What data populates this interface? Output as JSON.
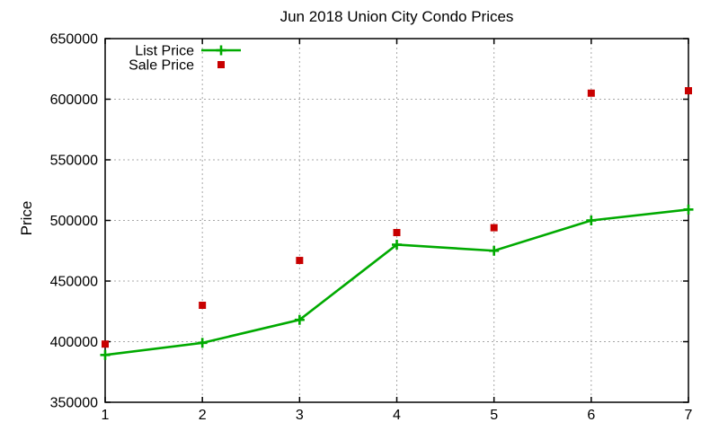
{
  "chart_data": {
    "type": "line",
    "title": "Jun 2018 Union City Condo Prices",
    "xlabel": "",
    "ylabel": "Price",
    "x": [
      1,
      2,
      3,
      4,
      5,
      6,
      7
    ],
    "xlim": [
      1,
      7
    ],
    "ylim": [
      350000,
      650000
    ],
    "xticks": [
      1,
      2,
      3,
      4,
      5,
      6,
      7
    ],
    "yticks": [
      350000,
      400000,
      450000,
      500000,
      550000,
      600000,
      650000
    ],
    "grid": true,
    "legend_position": "top-left",
    "series": [
      {
        "name": "List Price",
        "render": "line-with-plus-markers",
        "color": "#00AA00",
        "values": [
          389000,
          399000,
          418000,
          480000,
          475000,
          500000,
          509000
        ]
      },
      {
        "name": "Sale Price",
        "render": "scatter-squares",
        "color": "#C80000",
        "values": [
          398000,
          430000,
          467000,
          490000,
          494000,
          605000,
          607000
        ]
      }
    ],
    "colors": {
      "grid": "#A8A8A8",
      "border": "#000000",
      "text": "#000000"
    }
  }
}
